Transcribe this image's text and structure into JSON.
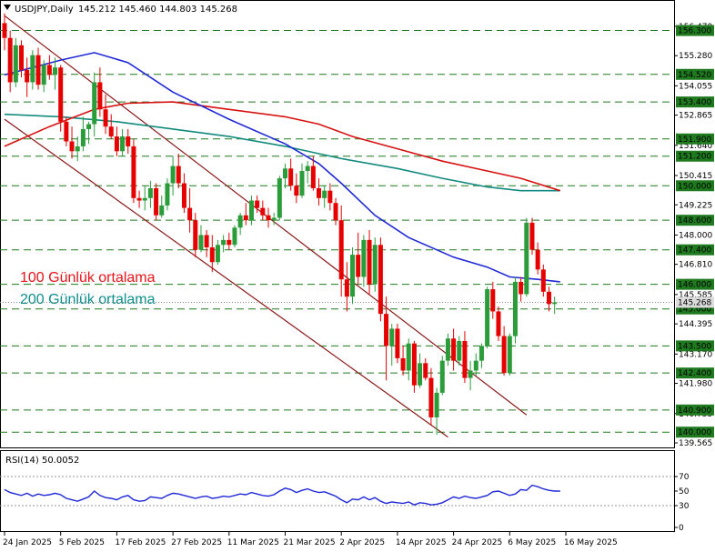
{
  "header": {
    "symbol": "USDJPY,Daily",
    "ohlc": "145.212 145.460 144.803 145.268"
  },
  "annotations": [
    {
      "text": "100 Günlük ortalama",
      "color": "#e8141a"
    },
    {
      "text": "200 Günlük ortalama",
      "color": "#0d8e8e"
    }
  ],
  "rsi_header": "RSI(14) 50.0052",
  "colors": {
    "up": "#2a9d3a",
    "down": "#e60000",
    "ma50": "#1f28d6",
    "ma100": "#d71010",
    "ma200": "#138a7e",
    "level": "#1f7a1f",
    "channel": "#8b1a1a",
    "rsi": "#1f28d6"
  },
  "chart_data": [
    {
      "type": "candlestick",
      "title": "USDJPY,Daily",
      "ylim": [
        139.565,
        156.8
      ],
      "y_ticks": [
        "156.470",
        "155.280",
        "154.055",
        "152.865",
        "151.640",
        "150.415",
        "149.225",
        "148.000",
        "146.810",
        "145.585",
        "144.395",
        "143.170",
        "141.980",
        "140.755",
        "139.565"
      ],
      "levels": [
        {
          "value": 156.3,
          "label": "156.300"
        },
        {
          "value": 154.52,
          "label": "154.520"
        },
        {
          "value": 153.4,
          "label": "153.400"
        },
        {
          "value": 151.9,
          "label": "151.900"
        },
        {
          "value": 151.2,
          "label": "151.200"
        },
        {
          "value": 150.0,
          "label": "150.000"
        },
        {
          "value": 148.6,
          "label": "148.600"
        },
        {
          "value": 147.4,
          "label": "147.400"
        },
        {
          "value": 146.0,
          "label": "146.000"
        },
        {
          "value": 145.0,
          "label": "145.000"
        },
        {
          "value": 143.5,
          "label": "143.500"
        },
        {
          "value": 142.4,
          "label": "142.400"
        },
        {
          "value": 140.9,
          "label": "140.900"
        },
        {
          "value": 140.0,
          "label": "140.000"
        }
      ],
      "current_price": 145.268,
      "x_labels": [
        "24 Jan 2025",
        "5 Feb 2025",
        "17 Feb 2025",
        "27 Feb 2025",
        "11 Mar 2025",
        "21 Mar 2025",
        "2 Apr 2025",
        "14 Apr 2025",
        "24 Apr 2025",
        "6 May 2025",
        "16 May 2025"
      ],
      "x_label_bars": [
        0,
        10,
        20,
        30,
        40,
        50,
        60,
        70,
        80,
        90,
        100
      ],
      "candles": [
        [
          156.6,
          157.0,
          155.5,
          156.0
        ],
        [
          156.0,
          156.3,
          153.8,
          154.2
        ],
        [
          154.2,
          156.0,
          154.0,
          155.7
        ],
        [
          155.7,
          155.9,
          154.4,
          154.7
        ],
        [
          154.7,
          155.2,
          153.6,
          154.2
        ],
        [
          154.2,
          155.5,
          153.9,
          155.3
        ],
        [
          155.3,
          155.6,
          153.9,
          154.1
        ],
        [
          154.1,
          155.1,
          153.8,
          154.9
        ],
        [
          154.9,
          155.3,
          154.3,
          154.5
        ],
        [
          154.5,
          155.2,
          153.9,
          154.8
        ],
        [
          154.8,
          154.9,
          152.2,
          152.6
        ],
        [
          152.6,
          152.8,
          151.6,
          151.8
        ],
        [
          151.8,
          152.4,
          151.1,
          151.4
        ],
        [
          151.4,
          152.0,
          151.0,
          151.6
        ],
        [
          151.6,
          152.8,
          151.4,
          152.3
        ],
        [
          152.3,
          152.6,
          151.7,
          152.5
        ],
        [
          152.5,
          154.6,
          152.0,
          154.2
        ],
        [
          154.2,
          154.8,
          152.8,
          153.1
        ],
        [
          153.1,
          153.7,
          152.1,
          152.4
        ],
        [
          152.4,
          152.9,
          151.9,
          152.0
        ],
        [
          152.0,
          152.4,
          151.2,
          151.4
        ],
        [
          151.4,
          152.3,
          151.2,
          152.0
        ],
        [
          152.0,
          152.3,
          151.3,
          151.6
        ],
        [
          151.6,
          151.9,
          149.3,
          149.5
        ],
        [
          149.5,
          149.8,
          149.1,
          149.4
        ],
        [
          149.4,
          150.0,
          149.0,
          149.5
        ],
        [
          149.5,
          150.2,
          149.1,
          149.9
        ],
        [
          149.9,
          150.1,
          148.6,
          148.8
        ],
        [
          148.8,
          149.6,
          148.7,
          149.2
        ],
        [
          149.2,
          150.3,
          149.0,
          150.1
        ],
        [
          150.1,
          151.2,
          149.6,
          150.8
        ],
        [
          150.8,
          151.3,
          149.9,
          150.1
        ],
        [
          150.1,
          150.5,
          148.9,
          149.1
        ],
        [
          149.1,
          149.9,
          148.1,
          148.6
        ],
        [
          148.6,
          148.9,
          147.1,
          147.4
        ],
        [
          147.4,
          148.4,
          147.3,
          148.0
        ],
        [
          148.0,
          148.2,
          147.1,
          147.5
        ],
        [
          147.5,
          148.0,
          146.5,
          146.9
        ],
        [
          146.9,
          147.8,
          146.8,
          147.6
        ],
        [
          147.6,
          148.0,
          147.3,
          147.8
        ],
        [
          147.8,
          148.1,
          147.4,
          147.6
        ],
        [
          147.6,
          148.4,
          147.5,
          148.3
        ],
        [
          148.3,
          148.9,
          148.0,
          148.8
        ],
        [
          148.8,
          149.3,
          148.4,
          148.6
        ],
        [
          148.6,
          149.6,
          148.4,
          149.4
        ],
        [
          149.4,
          149.6,
          148.9,
          149.1
        ],
        [
          149.1,
          149.4,
          148.6,
          148.8
        ],
        [
          148.8,
          149.1,
          148.3,
          148.6
        ],
        [
          148.6,
          148.9,
          148.4,
          148.7
        ],
        [
          148.7,
          150.4,
          148.6,
          150.3
        ],
        [
          150.3,
          150.9,
          149.9,
          150.7
        ],
        [
          150.7,
          151.1,
          149.8,
          150.0
        ],
        [
          150.0,
          150.5,
          149.3,
          149.6
        ],
        [
          149.6,
          150.9,
          149.5,
          150.6
        ],
        [
          150.6,
          151.0,
          150.1,
          150.8
        ],
        [
          150.8,
          151.2,
          149.8,
          149.9
        ],
        [
          149.9,
          150.3,
          149.2,
          149.5
        ],
        [
          149.5,
          150.0,
          149.1,
          149.8
        ],
        [
          149.8,
          150.1,
          149.0,
          149.3
        ],
        [
          149.3,
          149.5,
          148.4,
          148.6
        ],
        [
          148.6,
          149.2,
          145.5,
          146.2
        ],
        [
          146.2,
          146.9,
          144.9,
          145.5
        ],
        [
          145.5,
          147.5,
          145.2,
          147.2
        ],
        [
          147.2,
          148.1,
          146.0,
          146.3
        ],
        [
          146.3,
          148.0,
          145.9,
          147.8
        ],
        [
          147.8,
          148.2,
          145.6,
          146.0
        ],
        [
          146.0,
          147.9,
          145.7,
          147.6
        ],
        [
          147.6,
          147.9,
          144.5,
          144.8
        ],
        [
          144.8,
          145.5,
          142.1,
          143.5
        ],
        [
          143.5,
          144.4,
          142.7,
          144.2
        ],
        [
          144.2,
          144.4,
          142.8,
          143.0
        ],
        [
          143.0,
          143.5,
          142.3,
          142.5
        ],
        [
          142.5,
          143.8,
          142.1,
          143.6
        ],
        [
          143.6,
          143.7,
          141.6,
          141.9
        ],
        [
          141.9,
          143.2,
          141.8,
          142.8
        ],
        [
          142.8,
          143.0,
          142.1,
          142.2
        ],
        [
          142.2,
          142.6,
          140.3,
          140.6
        ],
        [
          140.6,
          141.8,
          139.9,
          141.6
        ],
        [
          141.6,
          143.1,
          141.5,
          142.9
        ],
        [
          142.9,
          144.0,
          142.7,
          143.8
        ],
        [
          143.8,
          144.2,
          142.5,
          142.9
        ],
        [
          142.9,
          143.9,
          142.7,
          143.7
        ],
        [
          143.7,
          144.1,
          142.0,
          142.2
        ],
        [
          142.2,
          142.9,
          141.7,
          142.5
        ],
        [
          142.5,
          143.2,
          142.3,
          142.9
        ],
        [
          142.9,
          143.6,
          142.6,
          143.5
        ],
        [
          143.5,
          145.9,
          143.4,
          145.8
        ],
        [
          145.8,
          146.1,
          144.6,
          144.9
        ],
        [
          144.9,
          145.1,
          143.7,
          143.9
        ],
        [
          143.9,
          144.3,
          142.3,
          142.4
        ],
        [
          142.4,
          144.0,
          142.3,
          143.9
        ],
        [
          143.9,
          146.3,
          143.6,
          146.1
        ],
        [
          146.1,
          146.3,
          145.3,
          145.6
        ],
        [
          145.6,
          148.7,
          145.5,
          148.5
        ],
        [
          148.5,
          148.7,
          147.2,
          147.4
        ],
        [
          147.4,
          147.7,
          146.4,
          146.6
        ],
        [
          146.6,
          146.8,
          145.5,
          145.7
        ],
        [
          145.7,
          145.9,
          144.9,
          145.2
        ],
        [
          145.2,
          145.5,
          144.8,
          145.268
        ]
      ],
      "ma50": [
        [
          0,
          154.5
        ],
        [
          10,
          155.1
        ],
        [
          16,
          155.4
        ],
        [
          22,
          155.0
        ],
        [
          30,
          153.8
        ],
        [
          40,
          152.7
        ],
        [
          50,
          151.7
        ],
        [
          56,
          150.9
        ],
        [
          60,
          150.1
        ],
        [
          66,
          148.8
        ],
        [
          72,
          147.9
        ],
        [
          80,
          147.1
        ],
        [
          86,
          146.7
        ],
        [
          90,
          146.3
        ],
        [
          95,
          146.2
        ],
        [
          99,
          146.1
        ]
      ],
      "ma100": [
        [
          0,
          151.6
        ],
        [
          8,
          152.4
        ],
        [
          16,
          153.1
        ],
        [
          22,
          153.35
        ],
        [
          30,
          153.4
        ],
        [
          40,
          153.1
        ],
        [
          50,
          152.8
        ],
        [
          56,
          152.5
        ],
        [
          62,
          152.0
        ],
        [
          70,
          151.5
        ],
        [
          78,
          151.0
        ],
        [
          86,
          150.6
        ],
        [
          92,
          150.3
        ],
        [
          99,
          149.8
        ]
      ],
      "ma200": [
        [
          0,
          152.9
        ],
        [
          10,
          152.8
        ],
        [
          20,
          152.6
        ],
        [
          30,
          152.3
        ],
        [
          40,
          152.0
        ],
        [
          50,
          151.6
        ],
        [
          60,
          151.1
        ],
        [
          70,
          150.7
        ],
        [
          78,
          150.3
        ],
        [
          86,
          149.95
        ],
        [
          92,
          149.8
        ],
        [
          99,
          149.8
        ]
      ]
    },
    {
      "type": "line",
      "title": "RSI(14) 50.0052",
      "ylim": [
        0,
        100
      ],
      "y_ticks": [
        "70",
        "50",
        "30",
        "0"
      ],
      "levels": [
        70,
        30
      ],
      "values": [
        52,
        48,
        46,
        44,
        47,
        43,
        46,
        44,
        45,
        47,
        45,
        40,
        38,
        36,
        39,
        42,
        50,
        44,
        41,
        40,
        38,
        42,
        44,
        38,
        36,
        37,
        42,
        41,
        40,
        44,
        47,
        46,
        44,
        42,
        40,
        42,
        43,
        40,
        41,
        43,
        42,
        44,
        46,
        45,
        48,
        46,
        44,
        43,
        45,
        50,
        54,
        52,
        48,
        51,
        53,
        50,
        48,
        49,
        46,
        43,
        38,
        34,
        39,
        38,
        42,
        38,
        41,
        36,
        33,
        35,
        34,
        33,
        35,
        31,
        34,
        33,
        31,
        32,
        34,
        38,
        42,
        40,
        43,
        41,
        40,
        42,
        44,
        49,
        50,
        47,
        44,
        46,
        52,
        51,
        58,
        56,
        53,
        51,
        50,
        50
      ]
    }
  ]
}
